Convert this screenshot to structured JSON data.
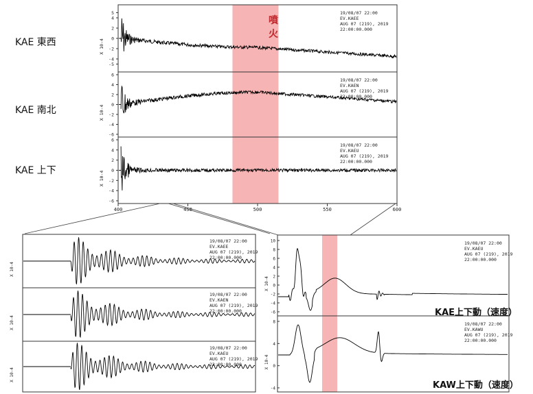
{
  "labels": {
    "kae_ew": "KAE 東西",
    "kae_ns": "KAE 南北",
    "kae_ud": "KAE 上下",
    "eruption": "噴\n火",
    "kae_ud_velocity": "KAE上下動（速度）",
    "kaw_ud_velocity": "KAW上下動（速度）"
  },
  "chart_data": [
    {
      "type": "line",
      "panel": "main-top",
      "ylabel": "X 10-4",
      "xlim": [
        400,
        600
      ],
      "xticks": [
        "400",
        "450",
        "500",
        "550",
        "600"
      ],
      "highlight_x": [
        482,
        515
      ],
      "highlight_color": "#f4a7a7",
      "rows": [
        {
          "component": "KAE 東西",
          "yticks": [
            "5",
            "4",
            "2",
            "0",
            "-2",
            "-4",
            "-5"
          ],
          "ylim": [
            -6,
            6
          ],
          "header": [
            "19/08/07 22:00",
            "EV.KAEE",
            "AUG 07 (219), 2019",
            "22:00:00.000"
          ]
        },
        {
          "component": "KAE 南北",
          "yticks": [
            "6",
            "4",
            "2",
            "0",
            "-2",
            "-4",
            "-6"
          ],
          "ylim": [
            -6,
            6
          ],
          "header": [
            "19/08/07 22:00",
            "EV.KAEN",
            "AUG 07 (219), 2019",
            "22:00:00.000"
          ]
        },
        {
          "component": "KAE 上下",
          "yticks": [
            "6",
            "4",
            "2",
            "0",
            "-2",
            "-4",
            "-6"
          ],
          "ylim": [
            -6,
            6
          ],
          "header": [
            "19/08/07 22:00",
            "EV.KAEU",
            "AUG 07 (219), 2019",
            "22:00:00.000"
          ]
        }
      ]
    },
    {
      "type": "line",
      "panel": "zoom-left",
      "ylabel": "X 10-4",
      "rows": [
        {
          "header": [
            "19/08/07 22:00",
            "EV.KAEE",
            "AUG 07 (219), 2019",
            "22:00:00.000"
          ]
        },
        {
          "header": [
            "19/08/07 22:00",
            "EV.KAEN",
            "AUG 07 (219), 2019",
            "22:00:00.000"
          ]
        },
        {
          "header": [
            "19/08/07 22:00",
            "EV.KAEU",
            "AUG 07 (219), 2019",
            "22:00:00.000"
          ]
        }
      ]
    },
    {
      "type": "line",
      "panel": "zoom-right",
      "ylabel": "X 10-4",
      "highlight_color": "#f4a7a7",
      "rows": [
        {
          "station": "KAE上下動（速度）",
          "yticks": [
            "10",
            "8",
            "6",
            "4",
            "2",
            "0",
            "-2",
            "-4",
            "-6"
          ],
          "header": [
            "19/08/07 22:00",
            "EV.KAEU",
            "AUG 07 (219), 2019",
            "22:00:00.000"
          ]
        },
        {
          "station": "KAW上下動（速度）",
          "yticks": [
            "8",
            "4",
            "0",
            "-4"
          ],
          "header": [
            "19/08/07 22:00",
            "EV.KAWU",
            "AUG 07 (219), 2019",
            "22:00:00.000"
          ]
        }
      ]
    }
  ]
}
